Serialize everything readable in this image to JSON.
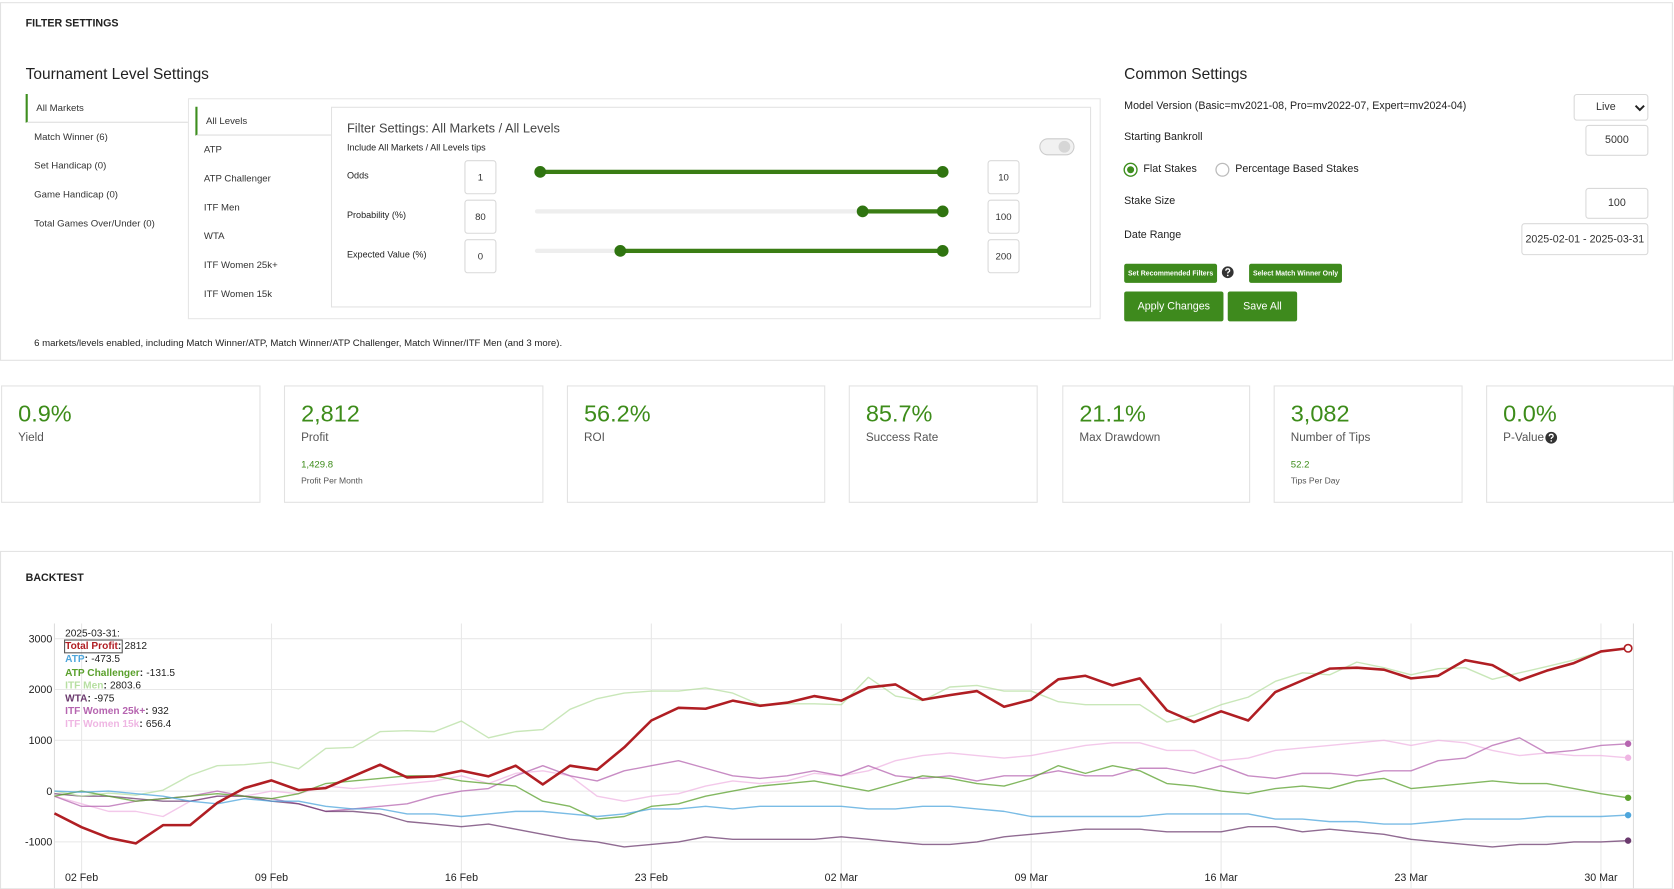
{
  "filter_settings": {
    "title": "FILTER SETTINGS",
    "tournament": {
      "title": "Tournament Level Settings",
      "markets": [
        "All Markets",
        "Match Winner (6)",
        "Set Handicap (0)",
        "Game Handicap (0)",
        "Total Games Over/Under (0)"
      ],
      "levels": [
        "All Levels",
        "ATP",
        "ATP Challenger",
        "ITF Men",
        "WTA",
        "ITF Women 25k+",
        "ITF Women 15k"
      ],
      "panel_title": "Filter Settings: All Markets / All Levels",
      "include_label": "Include All Markets / All Levels tips",
      "rows": [
        {
          "label": "Odds",
          "min": 1,
          "max": 10
        },
        {
          "label": "Probability (%)",
          "min": 80,
          "max": 100
        },
        {
          "label": "Expected Value (%)",
          "min": 0,
          "max": 200
        }
      ]
    },
    "summary": "6 markets/levels enabled, including Match Winner/ATP, Match Winner/ATP Challenger, Match Winner/ITF Men (and 3 more).",
    "common": {
      "title": "Common Settings",
      "model_label": "Model Version (Basic=mv2021-08, Pro=mv2022-07, Expert=mv2024-04)",
      "model_value": "Live",
      "bankroll_label": "Starting Bankroll",
      "bankroll": 5000,
      "stake_types": [
        "Flat Stakes",
        "Percentage Based Stakes"
      ],
      "stake_label": "Stake Size",
      "stake": 100,
      "date_label": "Date Range",
      "date_range": "2025-02-01 - 2025-03-31",
      "small_buttons": [
        "Set Recommended Filters",
        "Select Match Winner Only"
      ],
      "buttons": [
        "Apply Changes",
        "Save All"
      ]
    }
  },
  "stats": [
    {
      "value": "0.9%",
      "label": "Yield"
    },
    {
      "value": "2,812",
      "label": "Profit",
      "sub_value": "1,429.8",
      "sub_label": "Profit Per Month"
    },
    {
      "value": "56.2%",
      "label": "ROI"
    },
    {
      "value": "85.7%",
      "label": "Success Rate"
    },
    {
      "value": "21.1%",
      "label": "Max Drawdown"
    },
    {
      "value": "3,082",
      "label": "Number of Tips",
      "sub_value": "52.2",
      "sub_label": "Tips Per Day"
    },
    {
      "value": "0.0%",
      "label": "P-Value"
    }
  ],
  "backtest": {
    "title": "BACKTEST"
  },
  "chart_data": {
    "type": "line",
    "grid": true,
    "x": [
      "2025-02-01",
      "2025-02-02",
      "2025-02-03",
      "2025-02-04",
      "2025-02-05",
      "2025-02-06",
      "2025-02-07",
      "2025-02-08",
      "2025-02-09",
      "2025-02-10",
      "2025-02-11",
      "2025-02-12",
      "2025-02-13",
      "2025-02-14",
      "2025-02-15",
      "2025-02-16",
      "2025-02-17",
      "2025-02-18",
      "2025-02-19",
      "2025-02-20",
      "2025-02-21",
      "2025-02-22",
      "2025-02-23",
      "2025-02-24",
      "2025-02-25",
      "2025-02-26",
      "2025-02-27",
      "2025-02-28",
      "2025-03-01",
      "2025-03-02",
      "2025-03-03",
      "2025-03-04",
      "2025-03-05",
      "2025-03-06",
      "2025-03-07",
      "2025-03-08",
      "2025-03-09",
      "2025-03-10",
      "2025-03-11",
      "2025-03-12",
      "2025-03-13",
      "2025-03-14",
      "2025-03-15",
      "2025-03-16",
      "2025-03-17",
      "2025-03-18",
      "2025-03-19",
      "2025-03-20",
      "2025-03-21",
      "2025-03-22",
      "2025-03-23",
      "2025-03-24",
      "2025-03-25",
      "2025-03-26",
      "2025-03-27",
      "2025-03-28",
      "2025-03-29",
      "2025-03-30",
      "2025-03-31"
    ],
    "xlim": [
      "2025-02-01",
      "2025-03-31"
    ],
    "xticks": [
      {
        "value": "2025-02-02",
        "label": "02 Feb"
      },
      {
        "value": "2025-02-09",
        "label": "09 Feb"
      },
      {
        "value": "2025-02-16",
        "label": "16 Feb"
      },
      {
        "value": "2025-02-23",
        "label": "23 Feb"
      },
      {
        "value": "2025-03-02",
        "label": "02 Mar"
      },
      {
        "value": "2025-03-09",
        "label": "09 Mar"
      },
      {
        "value": "2025-03-16",
        "label": "16 Mar"
      },
      {
        "value": "2025-03-23",
        "label": "23 Mar"
      },
      {
        "value": "2025-03-30",
        "label": "30 Mar"
      }
    ],
    "ylim": [
      -1450,
      3300
    ],
    "yticks": [
      -1000,
      0,
      1000,
      2000,
      3000
    ],
    "tooltip": {
      "title": "2025-03-31:"
    },
    "series": [
      {
        "name": "Total Profit",
        "color": "#b01e23",
        "values": [
          -440,
          -710,
          -920,
          -1030,
          -670,
          -670,
          -230,
          60,
          210,
          20,
          60,
          290,
          520,
          270,
          290,
          400,
          290,
          500,
          130,
          500,
          420,
          860,
          1390,
          1640,
          1620,
          1780,
          1680,
          1740,
          1870,
          1780,
          2040,
          2100,
          1800,
          1890,
          1970,
          1660,
          1800,
          2200,
          2270,
          2080,
          2220,
          1590,
          1360,
          1570,
          1390,
          1950,
          2180,
          2410,
          2430,
          2390,
          2220,
          2270,
          2580,
          2480,
          2180,
          2370,
          2520,
          2750,
          2812
        ]
      },
      {
        "name": "ATP",
        "color": "#4ea6dc",
        "values": [
          0,
          -20,
          0,
          -50,
          -100,
          -200,
          -250,
          -150,
          -200,
          -200,
          -300,
          -350,
          -350,
          -450,
          -450,
          -500,
          -450,
          -400,
          -400,
          -450,
          -500,
          -450,
          -350,
          -350,
          -300,
          -350,
          -300,
          -300,
          -300,
          -300,
          -350,
          -350,
          -300,
          -300,
          -350,
          -400,
          -500,
          -500,
          -500,
          -500,
          -500,
          -450,
          -450,
          -450,
          -450,
          -550,
          -550,
          -600,
          -600,
          -650,
          -650,
          -600,
          -550,
          -550,
          -550,
          -500,
          -500,
          -500,
          -473.5
        ]
      },
      {
        "name": "ATP Challenger",
        "color": "#5aa02c",
        "values": [
          -100,
          0,
          -100,
          -200,
          -150,
          -100,
          -50,
          -100,
          -150,
          -50,
          150,
          200,
          250,
          300,
          300,
          200,
          150,
          100,
          -200,
          -300,
          -550,
          -500,
          -300,
          -250,
          -100,
          0,
          100,
          150,
          200,
          100,
          0,
          150,
          300,
          250,
          150,
          100,
          250,
          500,
          350,
          500,
          400,
          150,
          100,
          0,
          -50,
          50,
          100,
          50,
          200,
          250,
          50,
          100,
          150,
          200,
          150,
          150,
          50,
          -50,
          -131.5
        ]
      },
      {
        "name": "ITF Men",
        "color": "#b7dfa2",
        "values": [
          0,
          -100,
          -40,
          -80,
          20,
          310,
          500,
          520,
          570,
          440,
          840,
          860,
          1170,
          1190,
          1170,
          1380,
          1050,
          1170,
          1210,
          1610,
          1820,
          1930,
          1970,
          1970,
          2030,
          1930,
          1700,
          1720,
          1720,
          1700,
          2240,
          1870,
          1780,
          2050,
          2080,
          1970,
          1970,
          1760,
          1700,
          1700,
          1700,
          1360,
          1490,
          1700,
          1850,
          2160,
          2330,
          2290,
          2540,
          2430,
          2290,
          2410,
          2430,
          2200,
          2330,
          2450,
          2580,
          2750,
          2803.6
        ]
      },
      {
        "name": "WTA",
        "color": "#6b3a6e",
        "values": [
          -50,
          -100,
          -100,
          -150,
          -200,
          -200,
          -100,
          -100,
          -200,
          -250,
          -400,
          -400,
          -450,
          -600,
          -650,
          -700,
          -650,
          -750,
          -850,
          -950,
          -1000,
          -1100,
          -1050,
          -1000,
          -900,
          -950,
          -950,
          -950,
          -950,
          -900,
          -950,
          -1000,
          -1050,
          -1050,
          -1000,
          -900,
          -850,
          -800,
          -750,
          -750,
          -750,
          -800,
          -800,
          -800,
          -700,
          -700,
          -800,
          -750,
          -800,
          -850,
          -950,
          -1000,
          -1050,
          -1100,
          -1050,
          -1050,
          -1000,
          -1000,
          -975
        ]
      },
      {
        "name": "ITF Women 25k+",
        "color": "#b665b0",
        "values": [
          -100,
          -300,
          -300,
          -200,
          -150,
          -100,
          0,
          -100,
          -150,
          -250,
          -400,
          -350,
          -300,
          -250,
          -100,
          0,
          50,
          300,
          500,
          300,
          200,
          400,
          500,
          600,
          450,
          300,
          250,
          300,
          400,
          300,
          500,
          300,
          250,
          300,
          200,
          300,
          300,
          400,
          300,
          300,
          450,
          450,
          350,
          500,
          300,
          250,
          350,
          350,
          300,
          400,
          400,
          600,
          650,
          900,
          1050,
          750,
          800,
          900,
          932
        ]
      },
      {
        "name": "ITF Women 15k",
        "color": "#efb6e3",
        "values": [
          -100,
          -250,
          -400,
          -400,
          -500,
          -200,
          -100,
          -100,
          0,
          -50,
          100,
          50,
          100,
          150,
          200,
          300,
          150,
          350,
          400,
          300,
          -100,
          -200,
          -100,
          -50,
          100,
          200,
          150,
          200,
          350,
          300,
          400,
          600,
          700,
          750,
          700,
          650,
          700,
          800,
          900,
          950,
          950,
          800,
          800,
          600,
          650,
          800,
          850,
          900,
          950,
          1000,
          900,
          1000,
          950,
          800,
          700,
          750,
          700,
          700,
          656.4
        ]
      }
    ]
  }
}
